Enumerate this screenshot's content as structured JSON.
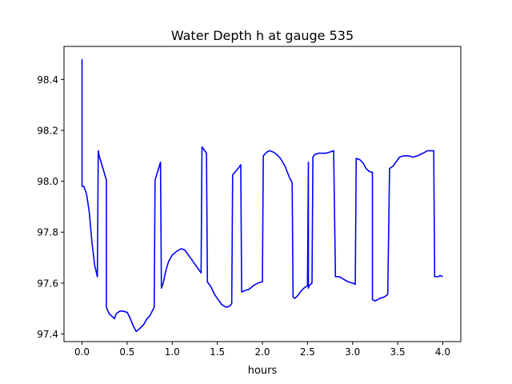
{
  "chart_data": {
    "type": "line",
    "title": "Water Depth h at gauge 535",
    "xlabel": "hours",
    "ylabel": "",
    "xlim": [
      -0.2,
      4.2
    ],
    "ylim": [
      97.37,
      98.53
    ],
    "xticks": [
      0.0,
      0.5,
      1.0,
      1.5,
      2.0,
      2.5,
      3.0,
      3.5,
      4.0
    ],
    "xtick_labels": [
      "0.0",
      "0.5",
      "1.0",
      "1.5",
      "2.0",
      "2.5",
      "3.0",
      "3.5",
      "4.0"
    ],
    "yticks": [
      97.4,
      97.6,
      97.8,
      98.0,
      98.2,
      98.4
    ],
    "ytick_labels": [
      "97.4",
      "97.6",
      "97.8",
      "98.0",
      "98.2",
      "98.4"
    ],
    "grid": false,
    "series": [
      {
        "name": "",
        "color": "#0000ff",
        "x": [
          0.0,
          0.0,
          0.02,
          0.05,
          0.08,
          0.11,
          0.14,
          0.17,
          0.18,
          0.19,
          0.27,
          0.27,
          0.3,
          0.33,
          0.36,
          0.38,
          0.42,
          0.45,
          0.5,
          0.53,
          0.57,
          0.6,
          0.62,
          0.65,
          0.68,
          0.72,
          0.75,
          0.8,
          0.81,
          0.87,
          0.88,
          0.9,
          0.93,
          0.96,
          1.0,
          1.05,
          1.1,
          1.14,
          1.18,
          1.22,
          1.26,
          1.32,
          1.33,
          1.38,
          1.39,
          1.43,
          1.47,
          1.5,
          1.55,
          1.6,
          1.64,
          1.66,
          1.67,
          1.73,
          1.76,
          1.77,
          1.8,
          1.85,
          1.9,
          1.95,
          2.0,
          2.01,
          2.05,
          2.08,
          2.12,
          2.16,
          2.2,
          2.25,
          2.3,
          2.33,
          2.34,
          2.36,
          2.39,
          2.42,
          2.46,
          2.48,
          2.5,
          2.51,
          2.51,
          2.52,
          2.55,
          2.56,
          2.58,
          2.62,
          2.66,
          2.7,
          2.75,
          2.79,
          2.81,
          2.85,
          2.88,
          2.9,
          2.95,
          3.0,
          3.03,
          3.04,
          3.08,
          3.12,
          3.15,
          3.18,
          3.21,
          3.22,
          3.22,
          3.25,
          3.28,
          3.3,
          3.35,
          3.39,
          3.41,
          3.45,
          3.48,
          3.52,
          3.57,
          3.62,
          3.67,
          3.72,
          3.78,
          3.83,
          3.88,
          3.9,
          3.91,
          3.95,
          3.97,
          4.0
        ],
        "y": [
          98.48,
          97.98,
          97.98,
          97.95,
          97.88,
          97.76,
          97.67,
          97.625,
          98.12,
          98.1,
          98.005,
          97.505,
          97.48,
          97.47,
          97.46,
          97.48,
          97.49,
          97.49,
          97.485,
          97.465,
          97.43,
          97.41,
          97.415,
          97.425,
          97.435,
          97.46,
          97.47,
          97.505,
          98.005,
          98.075,
          97.58,
          97.6,
          97.65,
          97.685,
          97.71,
          97.725,
          97.735,
          97.73,
          97.71,
          97.69,
          97.67,
          97.64,
          98.135,
          98.11,
          97.605,
          97.585,
          97.555,
          97.54,
          97.515,
          97.505,
          97.51,
          97.52,
          98.025,
          98.05,
          98.065,
          97.565,
          97.57,
          97.575,
          97.59,
          97.6,
          97.605,
          98.1,
          98.115,
          98.12,
          98.115,
          98.105,
          98.09,
          98.06,
          98.015,
          97.995,
          97.545,
          97.54,
          97.55,
          97.565,
          97.58,
          97.585,
          97.59,
          98.075,
          97.58,
          97.59,
          97.6,
          98.095,
          98.105,
          98.11,
          98.11,
          98.11,
          98.115,
          98.12,
          97.625,
          97.625,
          97.62,
          97.615,
          97.605,
          97.6,
          97.595,
          98.09,
          98.085,
          98.07,
          98.05,
          98.04,
          98.035,
          98.035,
          97.535,
          97.53,
          97.535,
          97.54,
          97.545,
          97.555,
          98.05,
          98.06,
          98.075,
          98.095,
          98.1,
          98.1,
          98.095,
          98.1,
          98.11,
          98.12,
          98.12,
          98.12,
          97.625,
          97.625,
          97.63,
          97.625
        ]
      }
    ]
  }
}
